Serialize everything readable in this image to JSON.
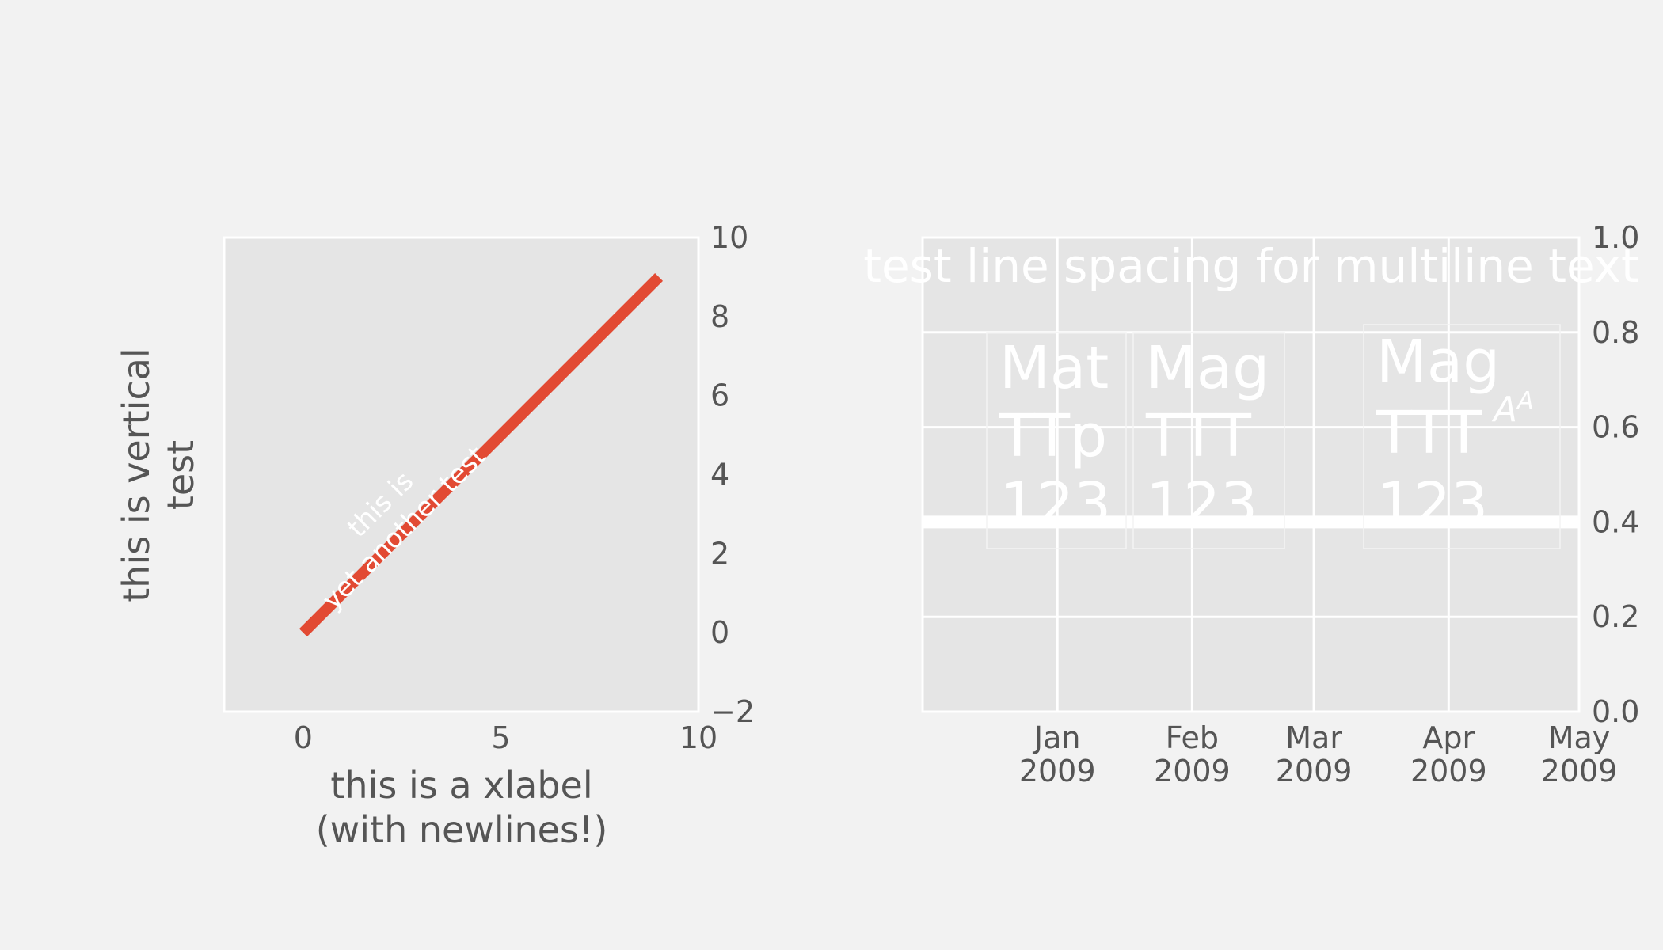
{
  "chart_data": [
    {
      "type": "line",
      "title": "",
      "xlabel": "this is a xlabel\n(with newlines!)",
      "ylabel": "this is vertical\ntest",
      "xlim": [
        -2,
        10
      ],
      "ylim": [
        -2,
        10
      ],
      "grid": false,
      "y_axis_side": "right",
      "x_ticks": [
        "0",
        "5",
        "10"
      ],
      "y_ticks": [
        "−2",
        "0",
        "2",
        "4",
        "6",
        "8",
        "10"
      ],
      "series": [
        {
          "x": [
            0,
            9
          ],
          "y": [
            0,
            9
          ],
          "color": "#e24a33"
        }
      ],
      "annotations": [
        {
          "text": "this is\nyet another test",
          "x": 2.4,
          "y": 2.8,
          "rotation": 45,
          "color": "#ffffff"
        }
      ]
    },
    {
      "type": "line",
      "title": "test line spacing for multiline text",
      "xlabel": "",
      "ylabel": "",
      "xlim": [
        "2008-12-01",
        "2009-05-01"
      ],
      "ylim": [
        0,
        1
      ],
      "grid": true,
      "y_axis_side": "right",
      "x_ticks": [
        {
          "date": "2009-01-01",
          "label": "Jan\n2009"
        },
        {
          "date": "2009-02-01",
          "label": "Feb\n2009"
        },
        {
          "date": "2009-03-01",
          "label": "Mar\n2009"
        },
        {
          "date": "2009-04-01",
          "label": "Apr\n2009"
        },
        {
          "date": "2009-05-01",
          "label": "May\n2009"
        }
      ],
      "y_ticks": [
        "0.0",
        "0.2",
        "0.4",
        "0.6",
        "0.8",
        "1.0"
      ],
      "series": [
        {
          "y_constant": 0.4,
          "color": "#ffffff"
        }
      ],
      "annotations": [
        {
          "text": "Mat\nTTp\n123"
        },
        {
          "text": "Mag\nTTT\n123"
        },
        {
          "text": "Mag\nTTT\n123",
          "math": "A^A"
        }
      ]
    }
  ]
}
